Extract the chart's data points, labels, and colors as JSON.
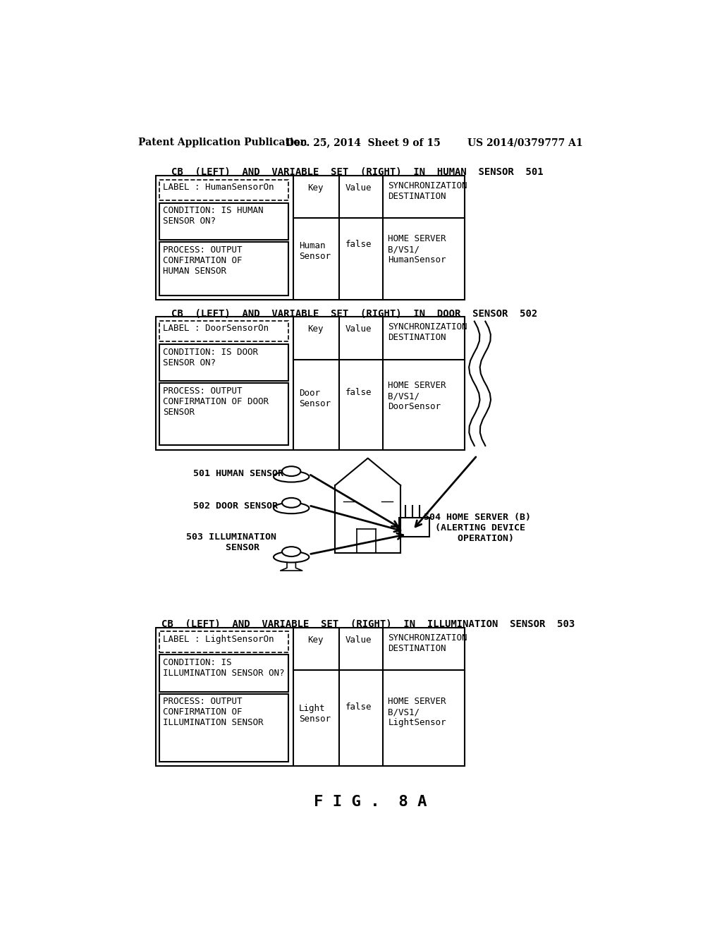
{
  "header_left": "Patent Application Publication",
  "header_mid": "Dec. 25, 2014  Sheet 9 of 15",
  "header_right": "US 2014/0379777 A1",
  "title1": "CB  (LEFT)  AND  VARIABLE  SET  (RIGHT)  IN  HUMAN  SENSOR  501",
  "title2": "CB  (LEFT)  AND  VARIABLE  SET  (RIGHT)  IN  DOOR  SENSOR  502",
  "title3": "CB  (LEFT)  AND  VARIABLE  SET  (RIGHT)  IN  ILLUMINATION  SENSOR  503",
  "fig_label": "F I G .  8 A",
  "panel1": {
    "label": "LABEL : HumanSensorOn",
    "condition": "CONDITION: IS HUMAN\nSENSOR ON?",
    "process": "PROCESS: OUTPUT\nCONFIRMATION OF\nHUMAN SENSOR",
    "key": "Human\nSensor",
    "value": "false",
    "sync_dest": "HOME SERVER\nB/VS1/\nHumanSensor"
  },
  "panel2": {
    "label": "LABEL : DoorSensorOn",
    "condition": "CONDITION: IS DOOR\nSENSOR ON?",
    "process": "PROCESS: OUTPUT\nCONFIRMATION OF DOOR\nSENSOR",
    "key": "Door\nSensor",
    "value": "false",
    "sync_dest": "HOME SERVER\nB/VS1/\nDoorSensor"
  },
  "panel3": {
    "label": "LABEL : LightSensorOn",
    "condition": "CONDITION: IS\nILLUMINATION SENSOR ON?",
    "process": "PROCESS: OUTPUT\nCONFIRMATION OF\nILLUMINATION SENSOR",
    "key": "Light\nSensor",
    "value": "false",
    "sync_dest": "HOME SERVER\nB/VS1/\nLightSensor"
  },
  "bg_color": "#ffffff",
  "text_color": "#000000"
}
